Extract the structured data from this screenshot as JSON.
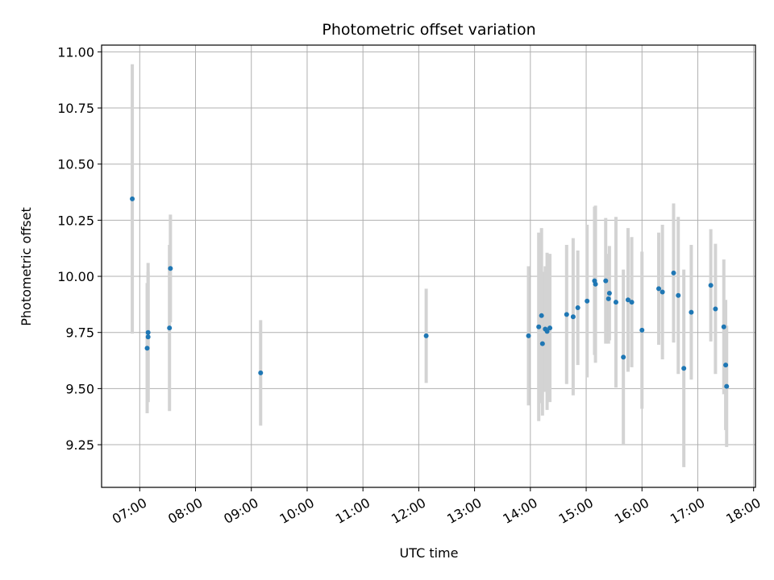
{
  "chart_data": {
    "type": "scatter",
    "title": "Photometric offset variation",
    "xlabel": "UTC time",
    "ylabel": "Photometric offset",
    "x_ticks": [
      "07:00",
      "08:00",
      "09:00",
      "10:00",
      "11:00",
      "12:00",
      "13:00",
      "14:00",
      "15:00",
      "16:00",
      "17:00",
      "18:00"
    ],
    "y_ticks": [
      9.25,
      9.5,
      9.75,
      10.0,
      10.25,
      10.5,
      10.75,
      11.0
    ],
    "y_tick_labels": [
      "9.25",
      "9.50",
      "9.75",
      "10.00",
      "10.25",
      "10.50",
      "10.75",
      "11.00"
    ],
    "xlim": [
      "06:19",
      "18:02"
    ],
    "ylim": [
      9.06,
      11.03
    ],
    "grid": true,
    "point_color": "#1f77b4",
    "errorbar_color": "#d3d3d3",
    "points": [
      {
        "x": "06:52",
        "y": 10.345,
        "err": 0.6
      },
      {
        "x": "07:08",
        "y": 9.68,
        "err": 0.29
      },
      {
        "x": "07:09",
        "y": 9.75,
        "err": 0.31
      },
      {
        "x": "07:09",
        "y": 9.73,
        "err": 0.29
      },
      {
        "x": "07:32",
        "y": 9.77,
        "err": 0.37
      },
      {
        "x": "07:33",
        "y": 10.035,
        "err": 0.24
      },
      {
        "x": "09:10",
        "y": 9.57,
        "err": 0.235
      },
      {
        "x": "12:08",
        "y": 9.735,
        "err": 0.21
      },
      {
        "x": "13:58",
        "y": 9.735,
        "err": 0.31
      },
      {
        "x": "14:09",
        "y": 9.775,
        "err": 0.42
      },
      {
        "x": "14:12",
        "y": 9.825,
        "err": 0.39
      },
      {
        "x": "14:13",
        "y": 9.7,
        "err": 0.32
      },
      {
        "x": "14:16",
        "y": 9.765,
        "err": 0.28
      },
      {
        "x": "14:18",
        "y": 9.755,
        "err": 0.35
      },
      {
        "x": "14:21",
        "y": 9.77,
        "err": 0.33
      },
      {
        "x": "14:39",
        "y": 9.83,
        "err": 0.31
      },
      {
        "x": "14:46",
        "y": 9.82,
        "err": 0.35
      },
      {
        "x": "14:51",
        "y": 9.86,
        "err": 0.255
      },
      {
        "x": "15:01",
        "y": 9.89,
        "err": 0.34
      },
      {
        "x": "15:09",
        "y": 9.98,
        "err": 0.33
      },
      {
        "x": "15:10",
        "y": 9.965,
        "err": 0.35
      },
      {
        "x": "15:21",
        "y": 9.98,
        "err": 0.28
      },
      {
        "x": "15:24",
        "y": 9.9,
        "err": 0.2
      },
      {
        "x": "15:25",
        "y": 9.925,
        "err": 0.21
      },
      {
        "x": "15:32",
        "y": 9.885,
        "err": 0.38
      },
      {
        "x": "15:40",
        "y": 9.64,
        "err": 0.39
      },
      {
        "x": "15:45",
        "y": 9.895,
        "err": 0.32
      },
      {
        "x": "15:49",
        "y": 9.885,
        "err": 0.29
      },
      {
        "x": "16:00",
        "y": 9.76,
        "err": 0.35
      },
      {
        "x": "16:18",
        "y": 9.945,
        "err": 0.25
      },
      {
        "x": "16:22",
        "y": 9.93,
        "err": 0.3
      },
      {
        "x": "16:34",
        "y": 10.015,
        "err": 0.31
      },
      {
        "x": "16:39",
        "y": 9.915,
        "err": 0.35
      },
      {
        "x": "16:45",
        "y": 9.59,
        "err": 0.44
      },
      {
        "x": "16:53",
        "y": 9.84,
        "err": 0.3
      },
      {
        "x": "17:14",
        "y": 9.96,
        "err": 0.25
      },
      {
        "x": "17:19",
        "y": 9.855,
        "err": 0.29
      },
      {
        "x": "17:28",
        "y": 9.775,
        "err": 0.3
      },
      {
        "x": "17:30",
        "y": 9.605,
        "err": 0.29
      },
      {
        "x": "17:31",
        "y": 9.51,
        "err": 0.27
      }
    ]
  }
}
